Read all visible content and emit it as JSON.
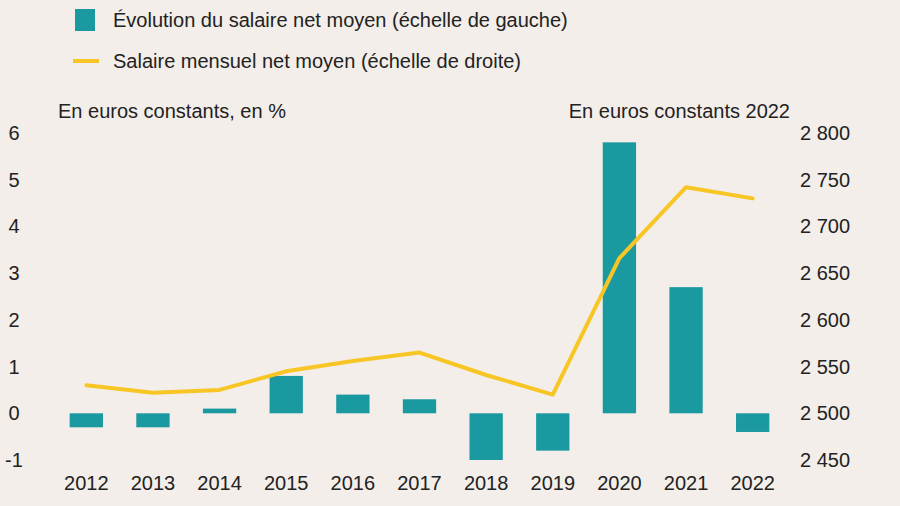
{
  "chart_data": {
    "type": "bar",
    "ylabel": "En euros constants, en %",
    "y2label": "En euros constants 2022",
    "categories": [
      "2012",
      "2013",
      "2014",
      "2015",
      "2016",
      "2017",
      "2018",
      "2019",
      "2020",
      "2021",
      "2022"
    ],
    "series": [
      {
        "name": "Évolution du salaire net moyen (échelle de gauche)",
        "type": "bar",
        "color": "#1a9aa0",
        "values": [
          -0.3,
          -0.3,
          0.1,
          0.8,
          0.4,
          0.3,
          -1.0,
          -0.8,
          5.8,
          2.7,
          -0.4
        ]
      },
      {
        "name": "Salaire mensuel net moyen (échelle de droite)",
        "type": "line",
        "color": "#f7c625",
        "axis": "y2",
        "values": [
          2530,
          2522,
          2525,
          2545,
          2556,
          2565,
          2541,
          2520,
          2666,
          2742,
          2730
        ]
      }
    ],
    "ylim": [
      -1,
      6
    ],
    "yticks": [
      -1,
      0,
      1,
      2,
      3,
      4,
      5,
      6
    ],
    "y2lim": [
      2450,
      2800
    ],
    "y2ticks": [
      {
        "value": 2450,
        "label": "2 450"
      },
      {
        "value": 2500,
        "label": "2 500"
      },
      {
        "value": 2550,
        "label": "2 550"
      },
      {
        "value": 2600,
        "label": "2 600"
      },
      {
        "value": 2650,
        "label": "2 650"
      },
      {
        "value": 2700,
        "label": "2 700"
      },
      {
        "value": 2750,
        "label": "2 750"
      },
      {
        "value": 2800,
        "label": "2 800"
      }
    ],
    "grid": false,
    "legend": "top",
    "data_labels": false
  }
}
